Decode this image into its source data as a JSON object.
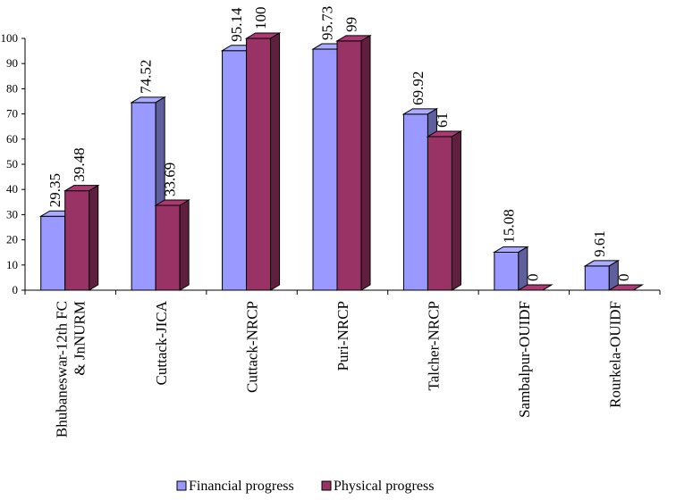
{
  "chart_data": {
    "type": "bar",
    "categories": [
      "Bhubaneswar-12th FC & JnNURM",
      "Cuttack-JICA",
      "Cuttack-NRCP",
      "Puri-NRCP",
      "Talcher-NRCP",
      "Sambalpur-OUIDF",
      "Rourkela-OUIDF"
    ],
    "series": [
      {
        "name": "Financial progress",
        "values": [
          29.35,
          74.52,
          95.14,
          95.73,
          69.92,
          15.08,
          9.61
        ],
        "color": "#9999ff"
      },
      {
        "name": "Physical progress",
        "values": [
          39.48,
          33.69,
          100,
          99,
          61,
          0,
          0
        ],
        "color": "#993366"
      }
    ],
    "data_labels": [
      [
        "29.35",
        "74.52",
        "95.14",
        "95.73",
        "69.92",
        "15.08",
        "9.61"
      ],
      [
        "39.48",
        "33.69",
        "100",
        "99",
        "61",
        "0",
        "0"
      ]
    ],
    "ylim": [
      0,
      100
    ],
    "yticks": [
      "0",
      "10",
      "20",
      "30",
      "40",
      "50",
      "60",
      "70",
      "80",
      "90",
      "100"
    ],
    "title": "",
    "xlabel": "",
    "ylabel": "",
    "legend_position": "bottom",
    "grid": false,
    "style": "3d"
  }
}
